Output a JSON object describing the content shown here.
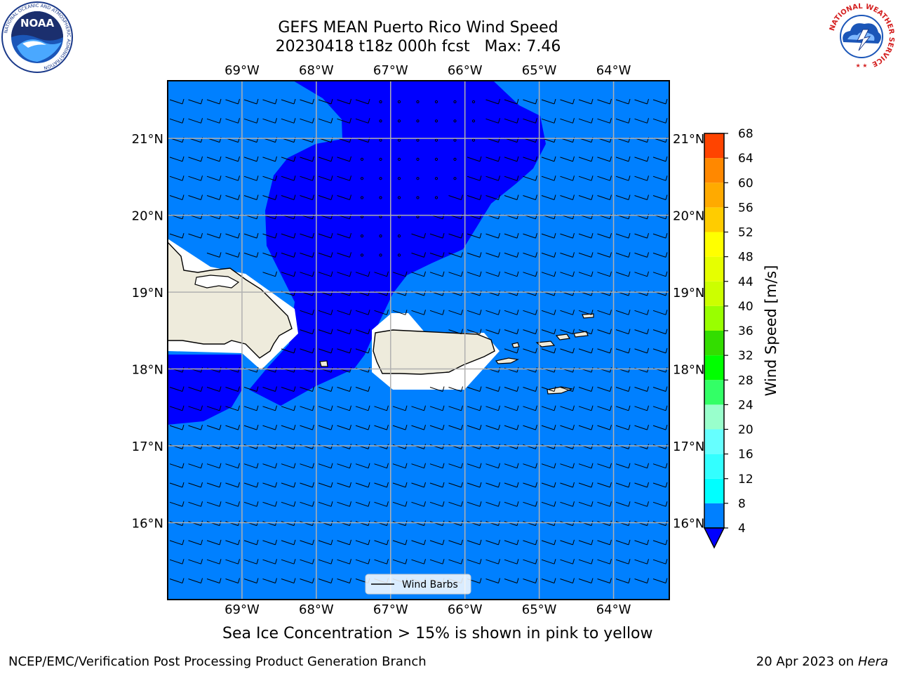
{
  "title_line1": "GEFS MEAN Puerto Rico Wind Speed",
  "title_line2": "20230418 t18z 000h fcst   Max: 7.46",
  "caption": "Sea Ice Concentration > 15% is shown in pink to yellow",
  "footer_left": "NCEP/EMC/Verification Post Processing Product Generation Branch",
  "footer_date": "20 Apr 2023 on ",
  "footer_machine": "Hera",
  "logos": {
    "noaa_text": "NOAA",
    "noaa_ring": "NATIONAL OCEANIC AND ATMOSPHERIC ADMINISTRATION",
    "noaa_ring_bottom": "U.S. DEPARTMENT OF COMMERCE",
    "nws_ring": "NATIONAL WEATHER SERVICE"
  },
  "colors": {
    "ocean_fill": "#0080ff",
    "calm_fill": "#0000ff",
    "land_fill": "#eeebdc",
    "grid": "#b0b0b0"
  },
  "chart_data": {
    "type": "heatmap",
    "title": "GEFS MEAN Puerto Rico Wind Speed",
    "subtitle": "20230418 t18z 000h fcst   Max: 7.46",
    "xlabel": "",
    "ylabel": "",
    "lon_range": [
      -70.0,
      -63.25
    ],
    "lat_range": [
      15.0,
      21.75
    ],
    "lon_ticks": [
      -69,
      -68,
      -67,
      -66,
      -65,
      -64
    ],
    "lon_tick_labels": [
      "69°W",
      "68°W",
      "67°W",
      "66°W",
      "65°W",
      "64°W"
    ],
    "lat_ticks": [
      16,
      17,
      18,
      19,
      20,
      21
    ],
    "lat_tick_labels": [
      "16°N",
      "17°N",
      "18°N",
      "19°N",
      "20°N",
      "21°N"
    ],
    "grid": true,
    "max_value": 7.46,
    "colorbar": {
      "label": "Wind Speed [m/s]",
      "levels": [
        4,
        8,
        12,
        16,
        20,
        24,
        28,
        32,
        36,
        40,
        44,
        48,
        52,
        56,
        60,
        64,
        68
      ],
      "colors": [
        "#0080ff",
        "#00ffff",
        "#33ffff",
        "#66ffff",
        "#99ffcc",
        "#33ff66",
        "#00ff00",
        "#33dd00",
        "#99ff00",
        "#ccff00",
        "#e6ff00",
        "#ffff00",
        "#ffcc00",
        "#ffaa00",
        "#ff8800",
        "#ff4400",
        "#ff0000"
      ],
      "under_color": "#0000ff"
    },
    "legend": {
      "label": "Wind Barbs",
      "position": "bottom-center"
    }
  }
}
